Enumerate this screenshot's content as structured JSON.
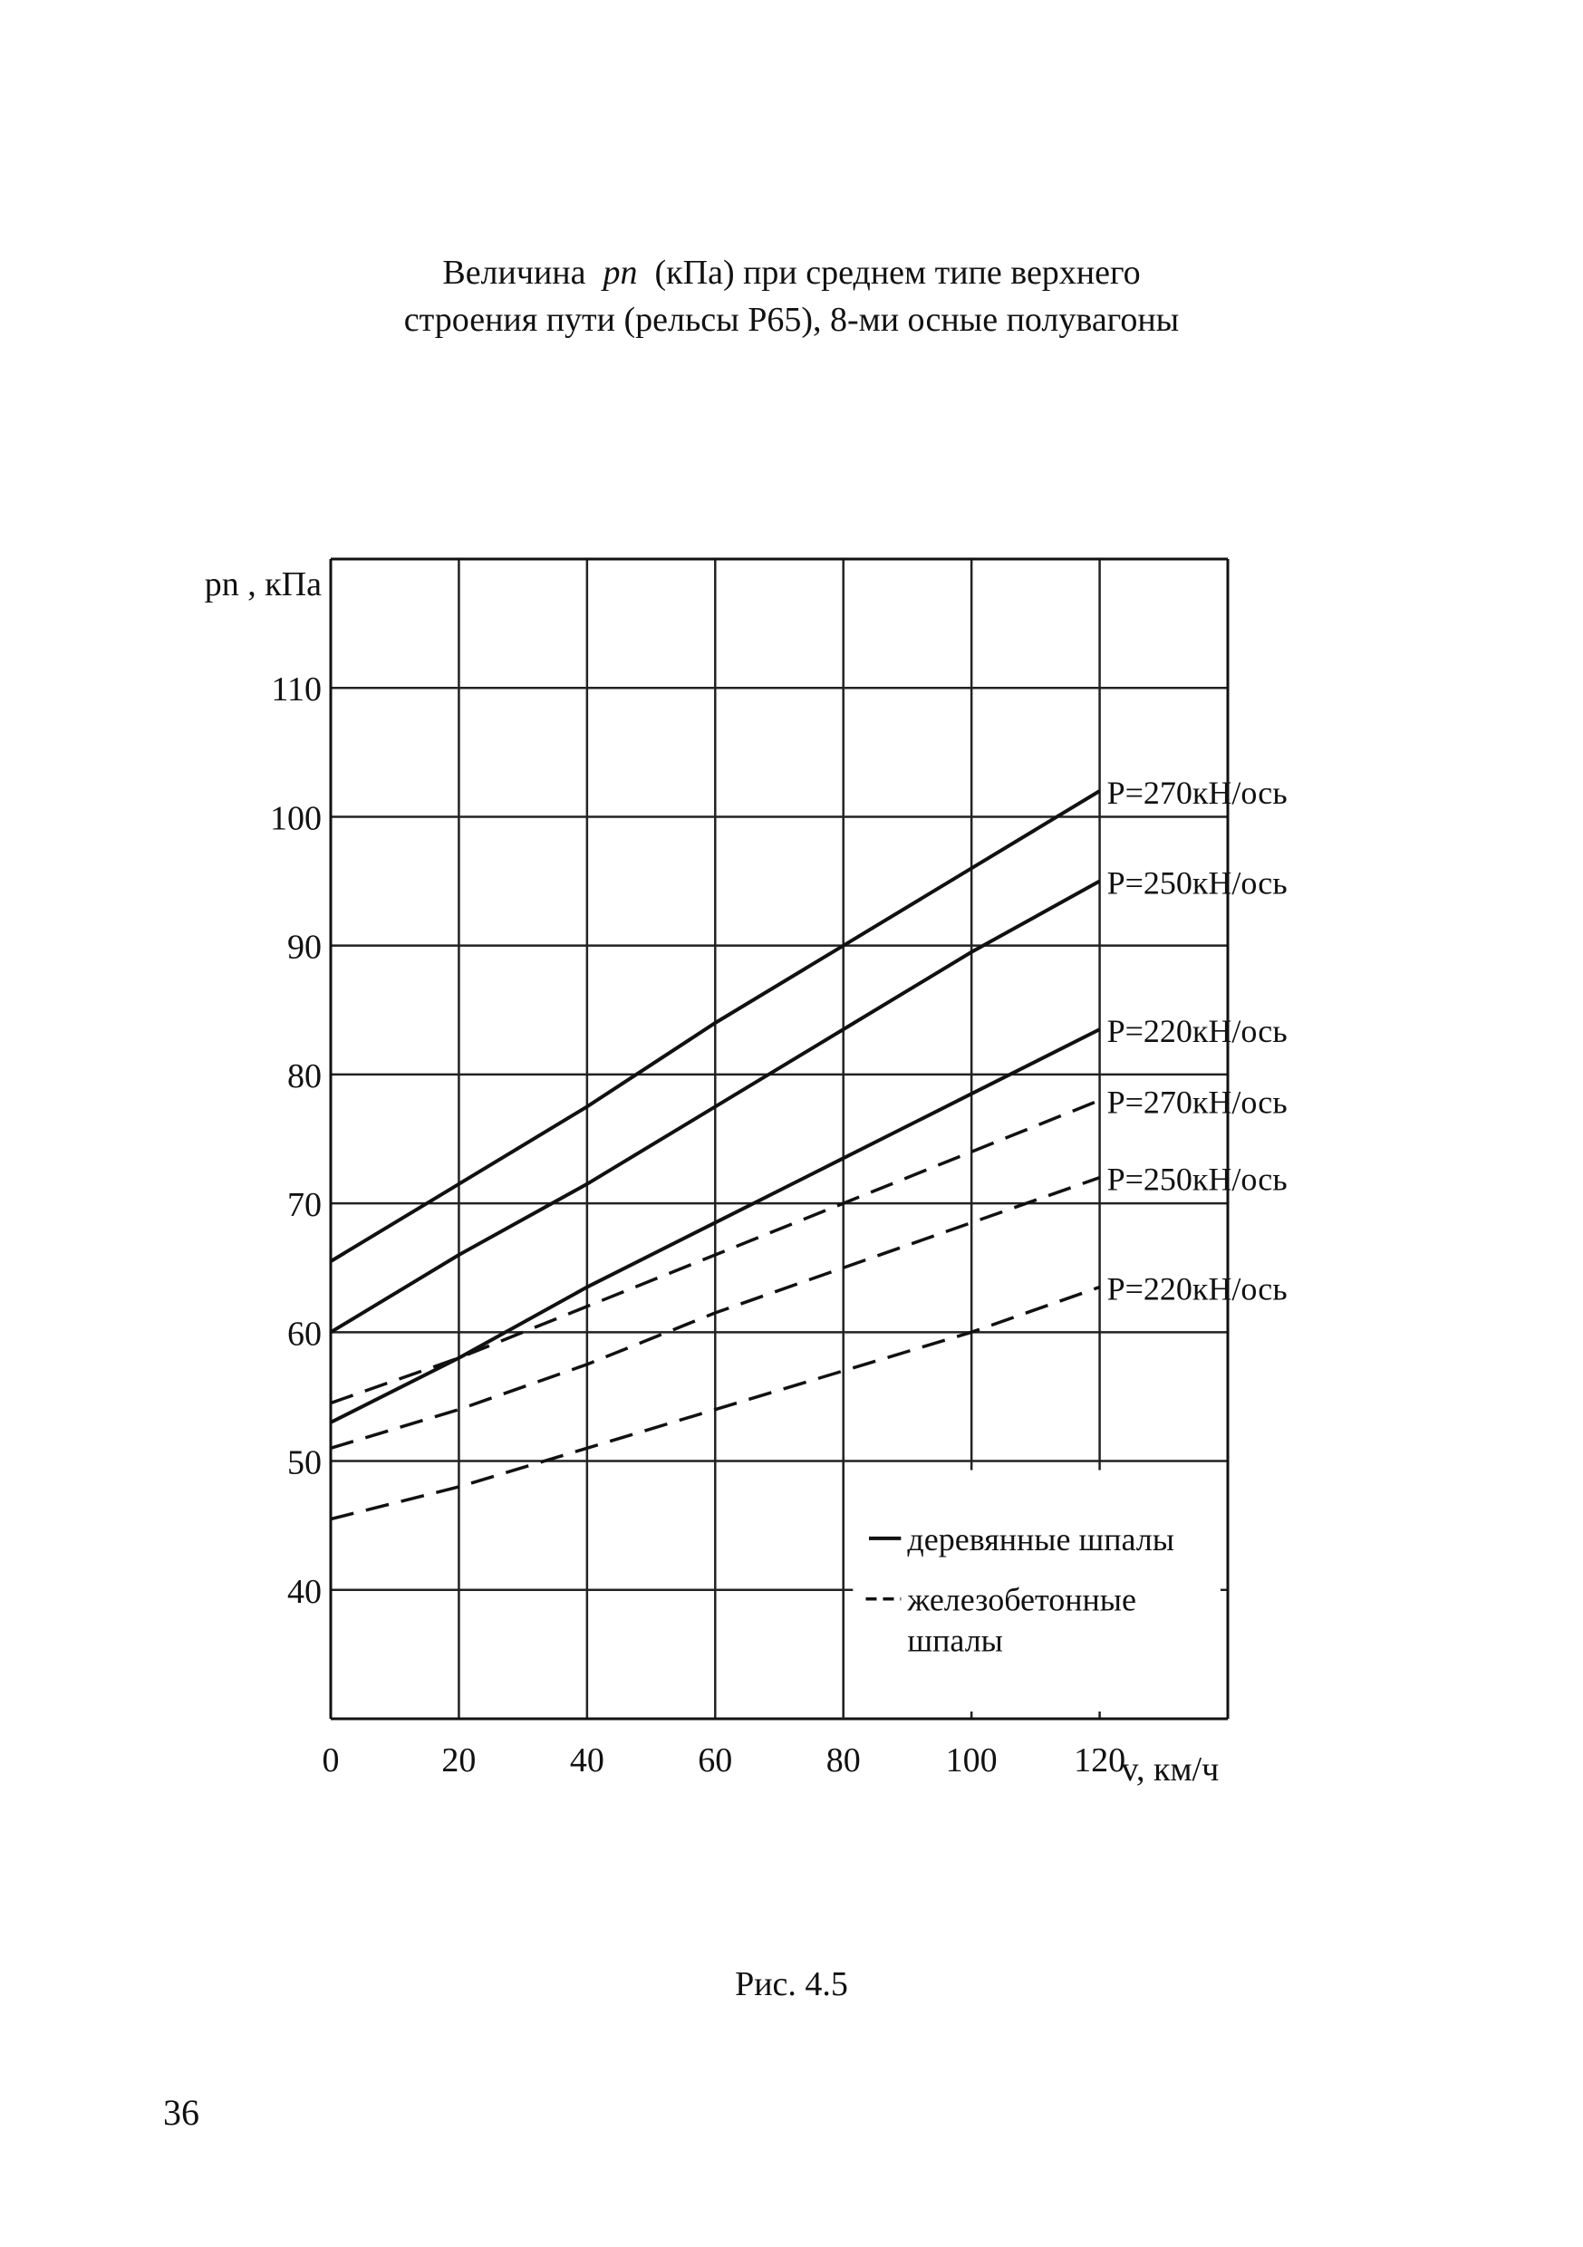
{
  "title": {
    "line1_prefix": "Величина",
    "line1_symbol": "pn",
    "line1_suffix": "(кПа) при среднем типе верхнего",
    "line2": "строения пути (рельсы Р65), 8-ми осные полувагоны"
  },
  "caption": "Рис. 4.5",
  "page_number": "36",
  "chart_data": {
    "type": "line",
    "ylabel": "pn , кПа",
    "xlabel": "v, км/ч",
    "xlim": [
      0,
      140
    ],
    "ylim": [
      30,
      120
    ],
    "x_ticks": [
      0,
      20,
      40,
      60,
      80,
      100,
      120
    ],
    "y_ticks": [
      40,
      50,
      60,
      70,
      80,
      90,
      100,
      110
    ],
    "grid": true,
    "legend_position": "bottom-right",
    "legend": [
      {
        "style": "solid",
        "label": "деревянные шпалы"
      },
      {
        "style": "dashed",
        "label": "железобетонные шпалы"
      }
    ],
    "series": [
      {
        "name": "P=270кН/ось",
        "style": "solid",
        "x": [
          0,
          20,
          40,
          60,
          80,
          100,
          120
        ],
        "y": [
          65.5,
          71.5,
          77.5,
          84,
          90,
          96,
          102
        ]
      },
      {
        "name": "P=250кН/ось",
        "style": "solid",
        "x": [
          0,
          20,
          40,
          60,
          80,
          100,
          120
        ],
        "y": [
          60,
          66,
          71.5,
          77.5,
          83.5,
          89.5,
          95
        ]
      },
      {
        "name": "P=220кН/ось",
        "style": "solid",
        "x": [
          0,
          20,
          40,
          60,
          80,
          100,
          120
        ],
        "y": [
          53,
          58,
          63.5,
          68.5,
          73.5,
          78.5,
          83.5
        ]
      },
      {
        "name": "P=270кН/ось",
        "style": "dashed",
        "x": [
          0,
          20,
          40,
          60,
          80,
          100,
          120
        ],
        "y": [
          54.5,
          58,
          62,
          66,
          70,
          74,
          78
        ]
      },
      {
        "name": "P=250кН/ось",
        "style": "dashed",
        "x": [
          0,
          20,
          40,
          60,
          80,
          100,
          120
        ],
        "y": [
          51,
          54,
          57.5,
          61.5,
          65,
          68.5,
          72
        ]
      },
      {
        "name": "P=220кН/ось",
        "style": "dashed",
        "x": [
          0,
          20,
          40,
          60,
          80,
          100,
          120
        ],
        "y": [
          45.5,
          48,
          51,
          54,
          57,
          60,
          63.5
        ]
      }
    ]
  }
}
